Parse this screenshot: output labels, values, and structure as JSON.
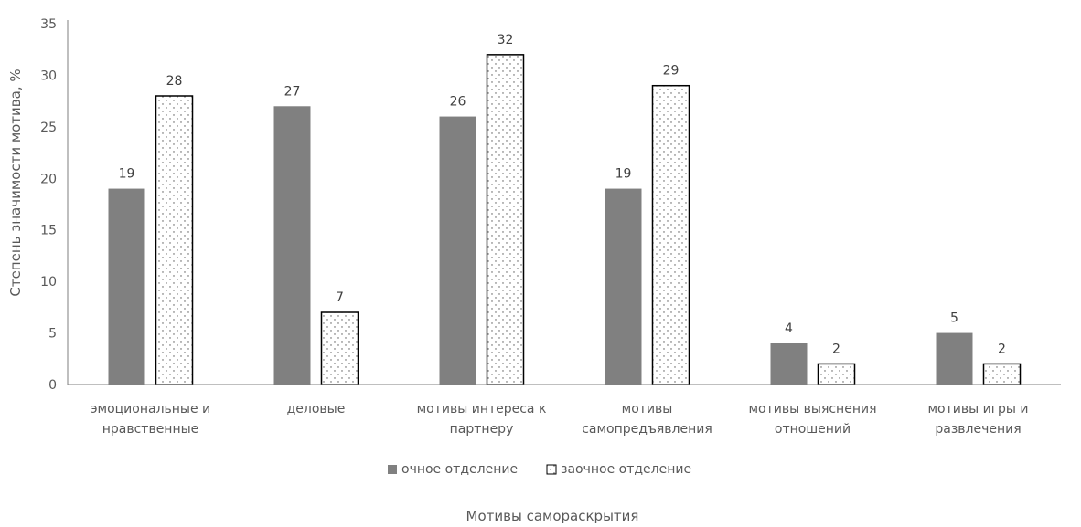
{
  "chart_data": {
    "type": "bar",
    "categories": [
      [
        "эмоциональные и",
        "нравственные"
      ],
      [
        "деловые"
      ],
      [
        "мотивы интереса к",
        "партнеру"
      ],
      [
        "мотивы",
        "самопредъявления"
      ],
      [
        "мотивы выяснения",
        "отношений"
      ],
      [
        "мотивы игры и",
        "развлечения"
      ]
    ],
    "series": [
      {
        "name": "очное отделение",
        "values": [
          19,
          27,
          26,
          19,
          4,
          5
        ],
        "color": "#808080",
        "pattern": "solid"
      },
      {
        "name": "заочное отделение",
        "values": [
          28,
          7,
          32,
          29,
          2,
          2
        ],
        "color": "#000000",
        "pattern": "dotted"
      }
    ],
    "xlabel": "Мотивы самораскрытия",
    "ylabel": "Степень значимости мотива, %",
    "ylim": [
      0,
      35
    ],
    "yticks": [
      0,
      5,
      10,
      15,
      20,
      25,
      30,
      35
    ],
    "grid": false,
    "legend": "bottom",
    "data_labels": true
  }
}
